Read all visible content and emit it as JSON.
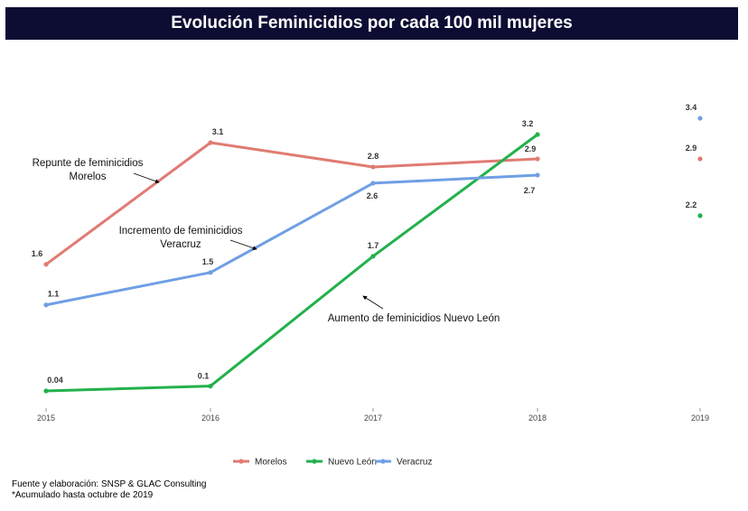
{
  "chart_data": {
    "type": "line",
    "title": "Evolución Feminicidios por cada 100 mil mujeres",
    "categories": [
      "2015",
      "2016",
      "2017",
      "2018",
      "2019"
    ],
    "series": [
      {
        "name": "Morelos",
        "color": "#e07b72",
        "values": [
          1.6,
          3.1,
          2.8,
          2.9,
          2.9
        ],
        "labels": [
          "1.6",
          "3.1",
          "2.8",
          "2.9",
          "2.9"
        ],
        "connected_through": "2018"
      },
      {
        "name": "Nuevo León",
        "color": "#22b14c",
        "values": [
          0.04,
          0.1,
          1.7,
          3.2,
          2.2
        ],
        "labels": [
          "0.04",
          "0.1",
          "1.7",
          "3.2",
          "2.2"
        ],
        "connected_through": "2018"
      },
      {
        "name": "Veracruz",
        "color": "#6f9fe4",
        "values": [
          1.1,
          1.5,
          2.6,
          2.7,
          3.4
        ],
        "labels": [
          "1.1",
          "1.5",
          "2.6",
          "2.7",
          "3.4"
        ],
        "connected_through": "2018"
      }
    ],
    "annotations": [
      {
        "lines": [
          "Repunte de feminicidios",
          "Morelos"
        ]
      },
      {
        "lines": [
          "Incremento de feminicidios",
          "Veracruz"
        ]
      },
      {
        "lines": [
          "Aumento de feminicidios Nuevo León"
        ]
      }
    ],
    "legend": "bottom",
    "grid": false
  },
  "footer": {
    "source": "Fuente y elaboración: SNSP & GLAC Consulting",
    "note": "*Acumulado hasta octubre de 2019"
  }
}
